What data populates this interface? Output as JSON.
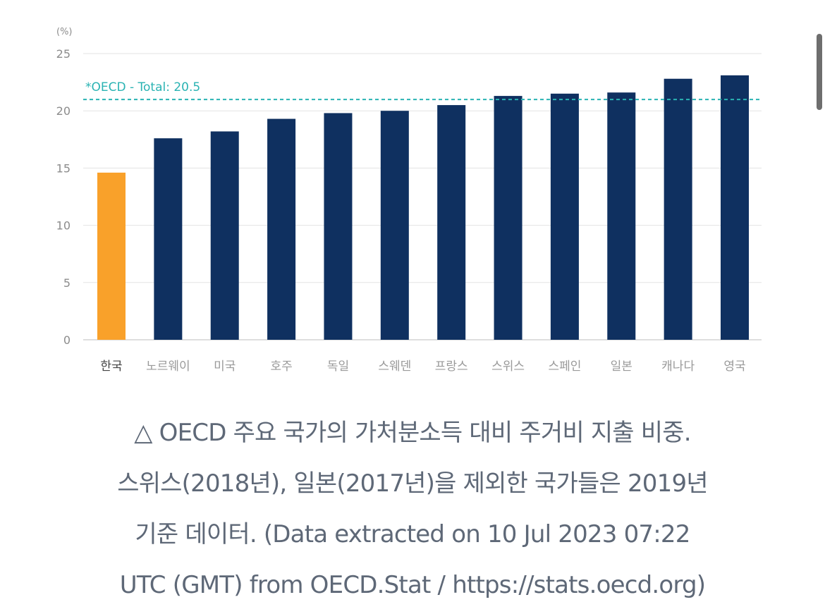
{
  "chart_data": {
    "type": "bar",
    "unit_label": "(%)",
    "categories": [
      "한국",
      "노르웨이",
      "미국",
      "호주",
      "독일",
      "스웨덴",
      "프랑스",
      "스위스",
      "스페인",
      "일본",
      "캐나다",
      "영국"
    ],
    "values": [
      14.6,
      17.6,
      18.2,
      19.3,
      19.8,
      20.0,
      20.5,
      21.3,
      21.5,
      21.6,
      22.8,
      23.1
    ],
    "highlight_category": "한국",
    "colors": {
      "bar": "#0f3060",
      "highlight_bar": "#f9a12a",
      "reference_line": "#2ab3b3",
      "grid": "#e3e3e3",
      "axis": "#bdbdbd"
    },
    "ylim": [
      0,
      25
    ],
    "yticks": [
      0,
      5,
      10,
      15,
      20,
      25
    ],
    "grid": true,
    "reference_line": {
      "label": "*OECD - Total: 20.5",
      "value": 20.5,
      "style": "dashed"
    },
    "title": "",
    "xlabel": "",
    "ylabel": ""
  },
  "caption": {
    "lines": [
      "△ OECD 주요 국가의 가처분소득 대비 주거비 지출 비중.",
      "스위스(2018년), 일본(2017년)을 제외한 국가들은 2019년",
      "기준 데이터. (Data extracted on 10 Jul 2023 07:22",
      "UTC (GMT) from OECD.Stat / https://stats.oecd.org)"
    ]
  }
}
